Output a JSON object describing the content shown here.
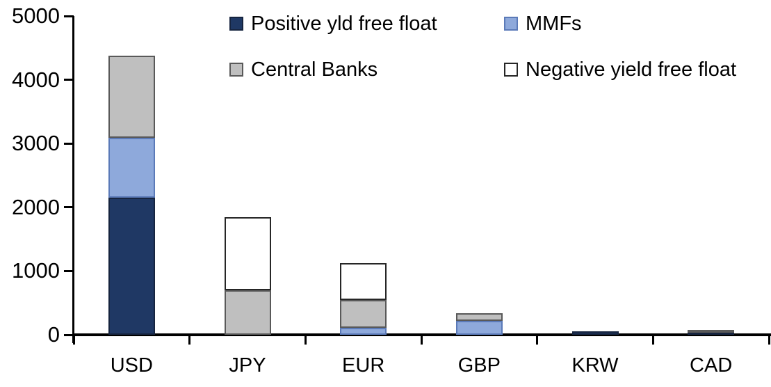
{
  "chart_data": {
    "type": "bar",
    "stacked": true,
    "title": "",
    "xlabel": "",
    "ylabel": "",
    "ylim": [
      0,
      5000
    ],
    "yticks": [
      0,
      1000,
      2000,
      3000,
      4000,
      5000
    ],
    "grid": false,
    "legend_position": "top",
    "categories": [
      "USD",
      "JPY",
      "EUR",
      "GBP",
      "KRW",
      "CAD"
    ],
    "series": [
      {
        "name": "Positive yld free float",
        "color": "#1F3864",
        "border": "#16243F",
        "values": [
          2150,
          0,
          0,
          0,
          50,
          45
        ]
      },
      {
        "name": "MMFs",
        "color": "#8EA9DB",
        "border": "#5B7AB8",
        "values": [
          940,
          0,
          110,
          215,
          0,
          0
        ]
      },
      {
        "name": "Central Banks",
        "color": "#BFBFBF",
        "border": "#595959",
        "values": [
          1290,
          700,
          435,
          120,
          0,
          35
        ]
      },
      {
        "name": "Negative yield free float",
        "color": "#FFFFFF",
        "border": "#262626",
        "values": [
          0,
          1150,
          575,
          0,
          0,
          0
        ]
      }
    ],
    "totals": [
      4380,
      1850,
      1120,
      335,
      50,
      80
    ]
  },
  "styles": {
    "background": "#FFFFFF",
    "axis_color": "#000000",
    "text_color": "#000000"
  }
}
